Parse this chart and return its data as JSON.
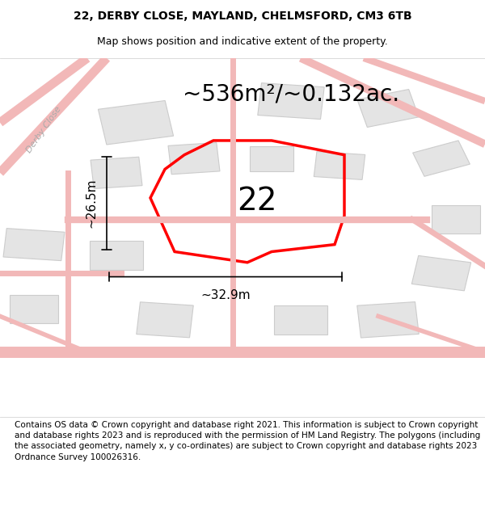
{
  "title_line1": "22, DERBY CLOSE, MAYLAND, CHELMSFORD, CM3 6TB",
  "title_line2": "Map shows position and indicative extent of the property.",
  "area_text": "~536m²/~0.132ac.",
  "number_label": "22",
  "width_label": "~32.9m",
  "height_label": "~26.5m",
  "footer_text": "Contains OS data © Crown copyright and database right 2021. This information is subject to Crown copyright and database rights 2023 and is reproduced with the permission of HM Land Registry. The polygons (including the associated geometry, namely x, y co-ordinates) are subject to Crown copyright and database rights 2023 Ordnance Survey 100026316.",
  "bg_color": "#ffffff",
  "map_bg": "#f5eeee",
  "road_color": "#f2b8b8",
  "building_color": "#e4e4e4",
  "building_edge": "#cccccc",
  "plot_color": "red",
  "plot_lw": 2.5,
  "title_fontsize": 10,
  "subtitle_fontsize": 9,
  "area_fontsize": 20,
  "number_fontsize": 28,
  "dim_fontsize": 11,
  "footer_fontsize": 7.5,
  "derby_close_label": "Derby Close",
  "derby_close_fontsize": 8,
  "derby_close_color": "#aaaaaa"
}
